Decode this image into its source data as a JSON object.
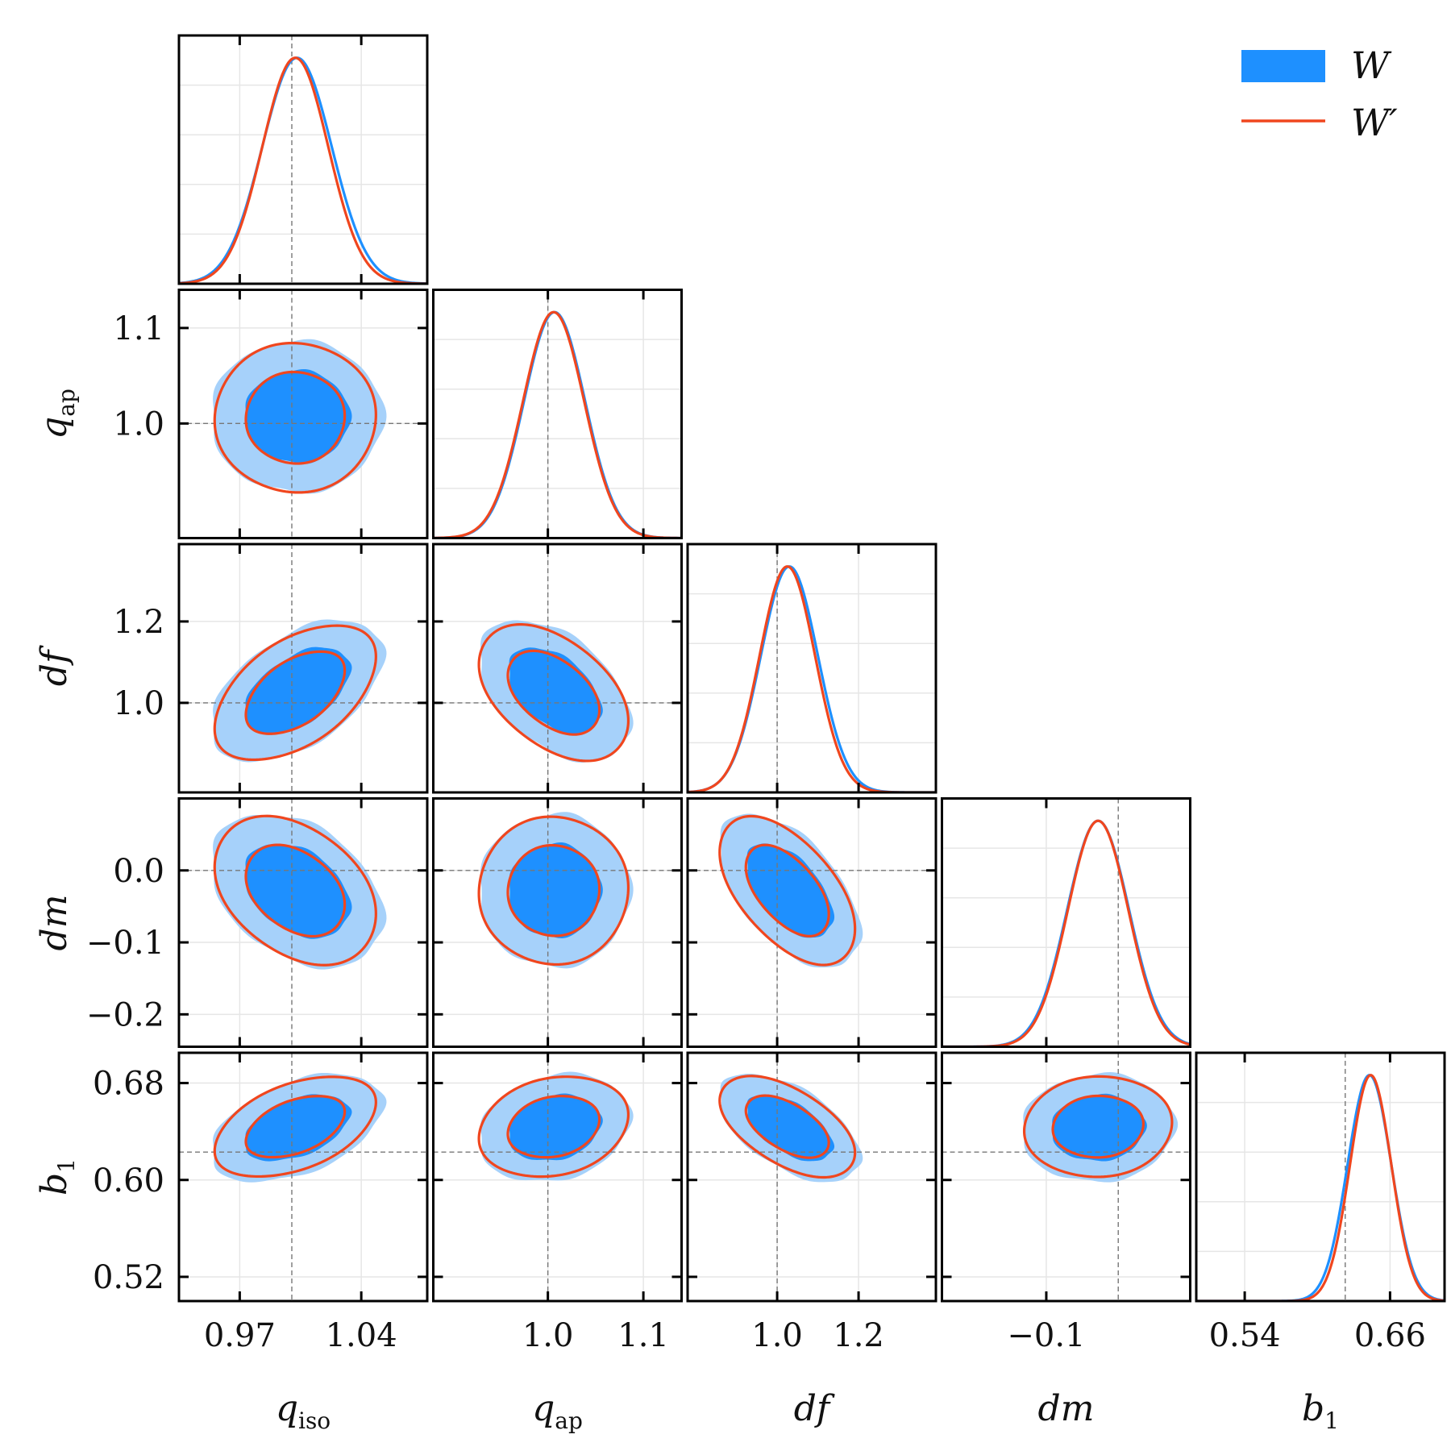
{
  "chart_data": {
    "type": "triangle-corner",
    "colors": {
      "W_fill": "#1e90ff",
      "W_fill_light": "#a6d1fa",
      "W_line": "#1e90ff",
      "Wp_line": "#f0461e",
      "truth": "#777777",
      "grid": "#e6e6e6",
      "frame": "#000000"
    },
    "legend": [
      {
        "name": "W",
        "style": "filled"
      },
      {
        "name": "W′",
        "style": "line"
      }
    ],
    "parameters": [
      {
        "key": "qiso",
        "label_main": "q",
        "label_sub": "iso",
        "range": [
          0.935,
          1.078
        ],
        "truth": 1.0,
        "ticks": [
          0.97,
          1.04
        ],
        "tick_labels": [
          "0.97",
          "1.04"
        ],
        "mean_W": 1.003,
        "sd_W": 0.02,
        "mean_Wp": 1.002,
        "sd_Wp": 0.019
      },
      {
        "key": "qap",
        "label_main": "q",
        "label_sub": "ap",
        "range": [
          0.88,
          1.14
        ],
        "truth": 1.0,
        "ticks": [
          1.0,
          1.1
        ],
        "tick_labels": [
          "1.0",
          "1.1"
        ],
        "mean_W": 1.007,
        "sd_W": 0.032,
        "mean_Wp": 1.006,
        "sd_Wp": 0.032
      },
      {
        "key": "df",
        "label_main": "df",
        "label_sub": "",
        "range": [
          0.78,
          1.39
        ],
        "truth": 1.0,
        "ticks": [
          1.0,
          1.2
        ],
        "tick_labels": [
          "1.0",
          "1.2"
        ],
        "mean_W": 1.03,
        "sd_W": 0.07,
        "mean_Wp": 1.025,
        "sd_Wp": 0.068
      },
      {
        "key": "dm",
        "label_main": "dm",
        "label_sub": "",
        "range": [
          -0.245,
          0.1
        ],
        "truth": 0.0,
        "ticks": [
          -0.1
        ],
        "tick_labels": [
          "−0.1"
        ],
        "yticks": [
          0.0,
          -0.1,
          -0.2
        ],
        "ytick_labels": [
          "0.0",
          "−0.1",
          "−0.2"
        ],
        "mean_W": -0.028,
        "sd_W": 0.043,
        "mean_Wp": -0.028,
        "sd_Wp": 0.042
      },
      {
        "key": "b1",
        "label_main": "b",
        "label_sub": "1",
        "range": [
          0.5,
          0.705
        ],
        "truth": 0.623,
        "ticks": [
          0.54,
          0.66
        ],
        "tick_labels": [
          "0.54",
          "0.66"
        ],
        "yticks": [
          0.68,
          0.6,
          0.52
        ],
        "ytick_labels": [
          "0.68",
          "0.60",
          "0.52"
        ],
        "mean_W": 0.643,
        "sd_W": 0.018,
        "mean_Wp": 0.644,
        "sd_Wp": 0.017
      }
    ],
    "correlations": {
      "qap|qiso": 0.0,
      "df|qiso": 0.5,
      "df|qap": -0.45,
      "dm|qiso": -0.35,
      "dm|qap": 0.0,
      "dm|df": -0.55,
      "b1|qiso": 0.45,
      "b1|qap": 0.2,
      "b1|df": -0.55,
      "b1|dm": 0.05
    },
    "contour_levels_sigma": [
      1.52,
      2.48
    ]
  }
}
